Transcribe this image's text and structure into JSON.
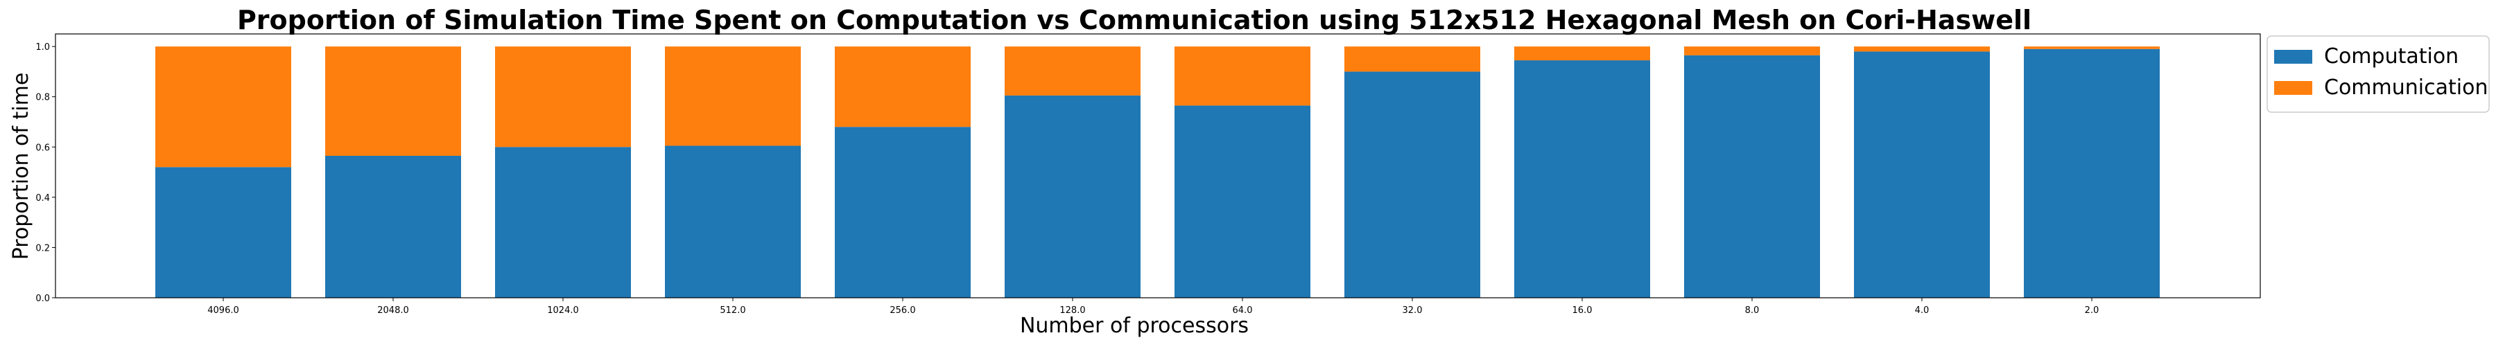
{
  "chart_data": {
    "type": "bar",
    "stacked": true,
    "title": "Proportion of Simulation Time Spent on Computation vs Communication using 512x512 Hexagonal Mesh on Cori-Haswell",
    "xlabel": "Number of processors",
    "ylabel": "Proportion of time",
    "categories": [
      "4096.0",
      "2048.0",
      "1024.0",
      "512.0",
      "256.0",
      "128.0",
      "64.0",
      "32.0",
      "16.0",
      "8.0",
      "4.0",
      "2.0"
    ],
    "series": [
      {
        "name": "Computation",
        "color": "#1f77b4",
        "values": [
          0.52,
          0.565,
          0.6,
          0.605,
          0.68,
          0.805,
          0.765,
          0.9,
          0.945,
          0.965,
          0.98,
          0.99
        ]
      },
      {
        "name": "Communication",
        "color": "#ff7f0e",
        "values": [
          0.48,
          0.435,
          0.4,
          0.395,
          0.32,
          0.195,
          0.235,
          0.1,
          0.055,
          0.035,
          0.02,
          0.01
        ]
      }
    ],
    "ylim": [
      0,
      1.05
    ],
    "yticks": [
      "0.0",
      "0.2",
      "0.4",
      "0.6",
      "0.8",
      "1.0"
    ],
    "grid": false,
    "legend_position": "outside-top-right"
  }
}
